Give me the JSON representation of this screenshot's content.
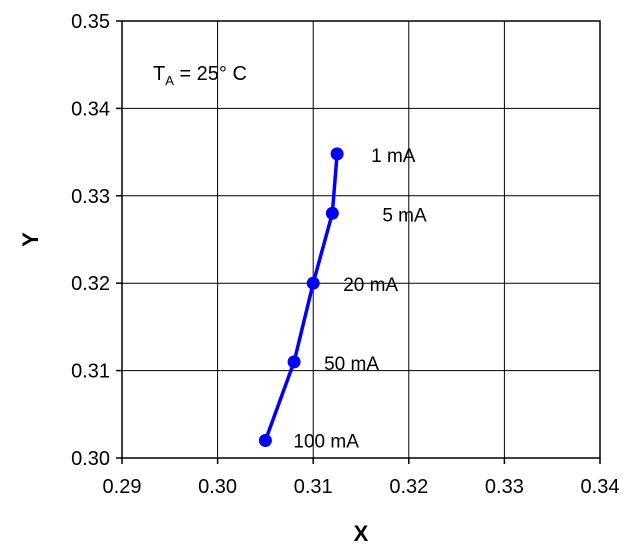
{
  "chart_data": {
    "type": "line",
    "xlabel": "X",
    "ylabel": "Y",
    "xlim": [
      0.29,
      0.34
    ],
    "ylim": [
      0.3,
      0.35
    ],
    "xticks": [
      "0.29",
      "0.30",
      "0.31",
      "0.32",
      "0.33",
      "0.34"
    ],
    "yticks": [
      "0.30",
      "0.31",
      "0.32",
      "0.33",
      "0.34",
      "0.35"
    ],
    "grid": true,
    "annotation": {
      "main": "T",
      "subscript": "A",
      "rest": " = 25° C"
    },
    "series": [
      {
        "color": "#0000ff",
        "x": [
          0.3125,
          0.312,
          0.31,
          0.308,
          0.305
        ],
        "y": [
          0.3348,
          0.328,
          0.32,
          0.311,
          0.302
        ],
        "labels": [
          "1 mA",
          "5 mA",
          "20 mA",
          "50 mA",
          "100 mA"
        ]
      }
    ]
  }
}
